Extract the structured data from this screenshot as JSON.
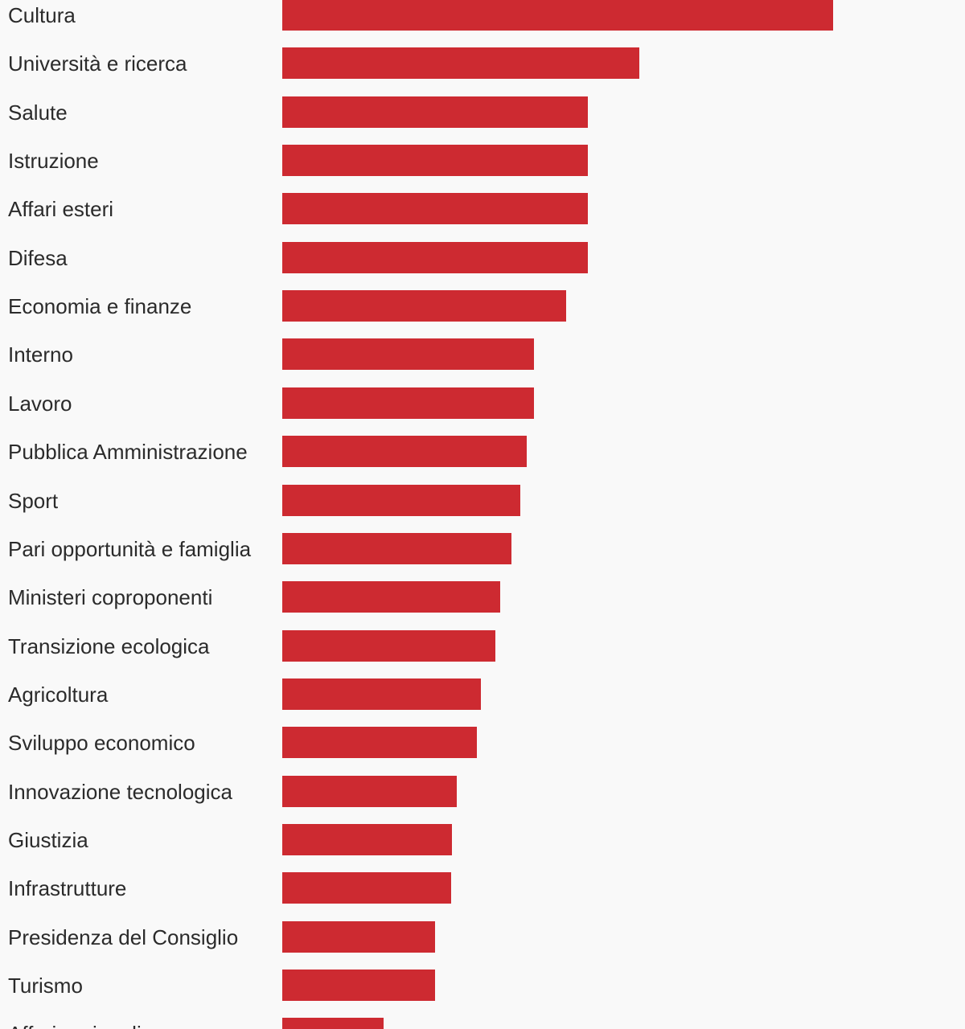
{
  "chart_data": {
    "type": "bar",
    "orientation": "horizontal",
    "bar_color": "#cd2a31",
    "categories": [
      "Cultura",
      "Università e ricerca",
      "Salute",
      "Istruzione",
      "Affari esteri",
      "Difesa",
      "Economia e finanze",
      "Interno",
      "Lavoro",
      "Pubblica Amministrazione",
      "Sport",
      "Pari opportunità e famiglia",
      "Ministeri coproponenti",
      "Transizione ecologica",
      "Agricoltura",
      "Sviluppo economico",
      "Innovazione tecnologica",
      "Giustizia",
      "Infrastrutture",
      "Presidenza del Consiglio",
      "Turismo",
      "Affari regionali"
    ],
    "values": [
      685,
      444,
      380,
      380,
      380,
      380,
      353,
      313,
      313,
      304,
      296,
      285,
      271,
      265,
      247,
      242,
      217,
      211,
      210,
      190,
      190,
      126
    ],
    "xlim": [
      0,
      685
    ]
  }
}
